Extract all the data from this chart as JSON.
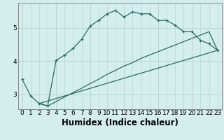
{
  "xlabel": "Humidex (Indice chaleur)",
  "bg_color": "#d4eeed",
  "line_color": "#2a6b60",
  "xlim": [
    -0.5,
    23.5
  ],
  "ylim": [
    2.55,
    5.75
  ],
  "yticks": [
    3,
    4,
    5
  ],
  "xticks": [
    0,
    1,
    2,
    3,
    4,
    5,
    6,
    7,
    8,
    9,
    10,
    11,
    12,
    13,
    14,
    15,
    16,
    17,
    18,
    19,
    20,
    21,
    22,
    23
  ],
  "curve1_x": [
    0,
    1,
    2,
    3,
    4,
    5,
    6,
    7,
    8,
    9,
    10,
    11,
    12,
    13,
    14,
    15,
    16,
    17,
    18,
    19,
    20,
    21,
    22,
    23
  ],
  "curve1_y": [
    3.45,
    2.95,
    2.72,
    2.65,
    4.02,
    4.18,
    4.38,
    4.65,
    5.05,
    5.22,
    5.42,
    5.52,
    5.32,
    5.48,
    5.42,
    5.42,
    5.22,
    5.22,
    5.08,
    4.88,
    4.88,
    4.62,
    4.52,
    4.32
  ],
  "curve2_x": [
    2,
    3,
    4,
    5,
    6,
    7,
    8,
    9,
    10,
    11,
    12,
    13,
    14,
    15,
    16,
    17,
    18,
    19,
    20,
    21,
    22,
    23
  ],
  "curve2_y": [
    2.72,
    2.65,
    2.78,
    2.92,
    3.05,
    3.18,
    3.32,
    3.45,
    3.6,
    3.72,
    3.85,
    3.95,
    4.08,
    4.18,
    4.28,
    4.38,
    4.48,
    4.58,
    4.68,
    4.78,
    4.88,
    4.32
  ],
  "curve3_x": [
    2,
    23
  ],
  "curve3_y": [
    2.72,
    4.32
  ],
  "grid_color": "#b8ddd8",
  "grid_color_major": "#c8a0a0",
  "tick_fontsize": 6.5,
  "xlabel_fontsize": 8.5
}
